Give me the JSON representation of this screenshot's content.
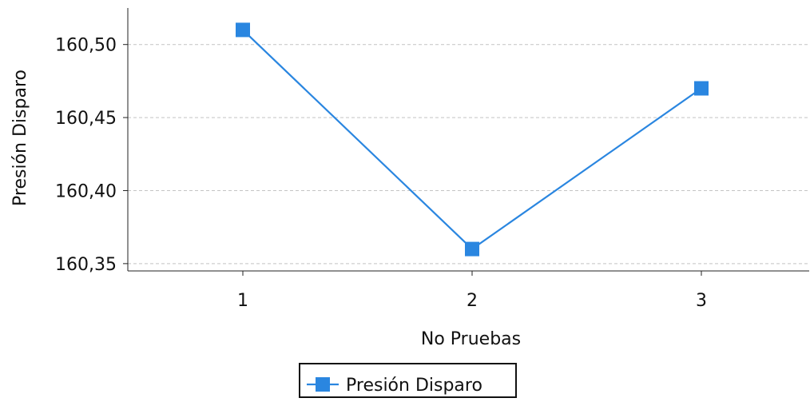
{
  "chart_data": {
    "type": "line",
    "title": "",
    "xlabel": "No Pruebas",
    "ylabel": "Presión Disparo",
    "categories": [
      "1",
      "2",
      "3"
    ],
    "yticks": [
      "160,35",
      "160,40",
      "160,45",
      "160,50"
    ],
    "ytick_values": [
      160.35,
      160.4,
      160.45,
      160.5
    ],
    "ylim": [
      160.345,
      160.525
    ],
    "grid": true,
    "legend_position": "bottom-center",
    "series": [
      {
        "name": "Presión Disparo",
        "values": [
          160.51,
          160.36,
          160.47
        ],
        "color": "#2a86e0",
        "marker": "square"
      }
    ]
  }
}
